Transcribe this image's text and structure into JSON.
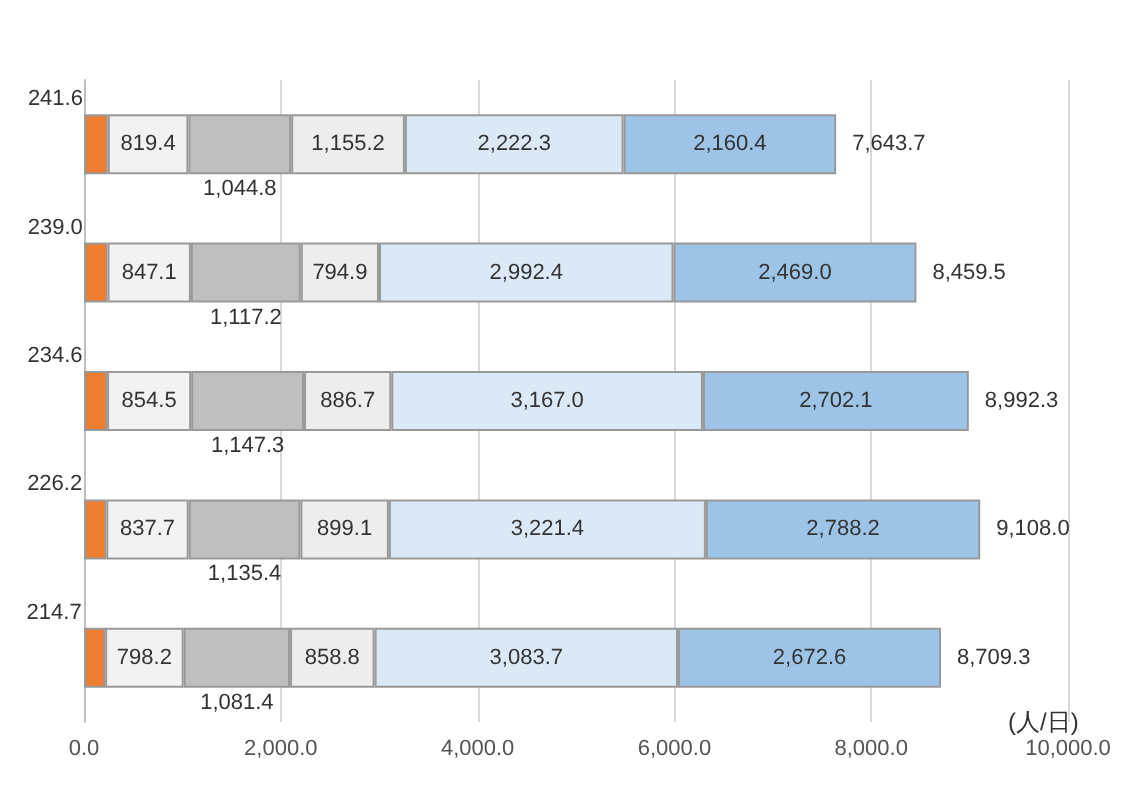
{
  "chart_data": {
    "type": "bar",
    "orientation": "horizontal",
    "stacked": true,
    "xlabel": "(人/日)",
    "categories": [
      null,
      null,
      null,
      null,
      null
    ],
    "series": [
      {
        "color": "#ed7d31",
        "values": [
          241.6,
          239.0,
          234.6,
          226.2,
          214.7
        ],
        "value_labels": [
          "241.6",
          "239.0",
          "234.6",
          "226.2",
          "214.7"
        ]
      },
      {
        "color": "#f2f2f2",
        "values": [
          819.4,
          847.1,
          854.5,
          837.7,
          798.2
        ],
        "value_labels": [
          "819.4",
          "847.1",
          "854.5",
          "837.7",
          "798.2"
        ]
      },
      {
        "color": "#bfbfbf",
        "values": [
          1044.8,
          1117.2,
          1147.3,
          1135.4,
          1081.4
        ],
        "value_labels": [
          "1,044.8",
          "1,117.2",
          "1,147.3",
          "1,135.4",
          "1,081.4"
        ]
      },
      {
        "color": "#ededed",
        "values": [
          1155.2,
          794.9,
          886.7,
          899.1,
          858.8
        ],
        "value_labels": [
          "1,155.2",
          "794.9",
          "886.7",
          "899.1",
          "858.8"
        ]
      },
      {
        "color": "#dbe9f7",
        "values": [
          2222.3,
          2992.4,
          3167.0,
          3221.4,
          3083.7
        ],
        "value_labels": [
          "2,222.3",
          "2,992.4",
          "3,167.0",
          "3,221.4",
          "3,083.7"
        ]
      },
      {
        "color": "#9dc3e6",
        "values": [
          2160.4,
          2469.0,
          2702.1,
          2788.2,
          2672.6
        ],
        "value_labels": [
          "2,160.4",
          "2,469.0",
          "2,702.1",
          "2,788.2",
          "2,672.6"
        ]
      }
    ],
    "totals": [
      "7,643.7",
      "8,459.5",
      "8,992.3",
      "9,108.0",
      "8,709.3"
    ],
    "xlim": [
      0,
      10000
    ],
    "xticks": [
      {
        "value": 0,
        "label": "0.0"
      },
      {
        "value": 2000,
        "label": "2,000.0"
      },
      {
        "value": 4000,
        "label": "4,000.0"
      },
      {
        "value": 6000,
        "label": "6,000.0"
      },
      {
        "value": 8000,
        "label": "8,000.0"
      },
      {
        "value": 10000,
        "label": "10,000.0"
      }
    ],
    "grid": "x"
  }
}
